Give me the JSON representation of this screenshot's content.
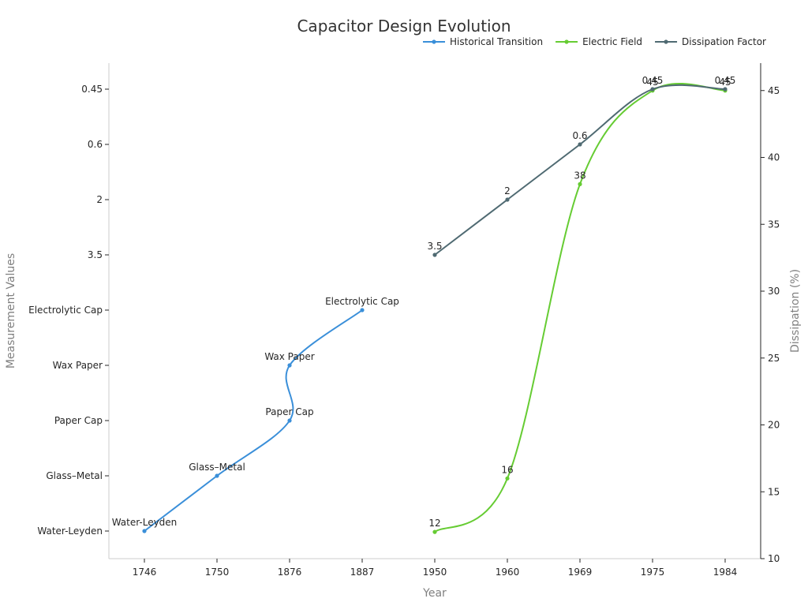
{
  "chart_data": {
    "type": "line",
    "title": "Capacitor Design Evolution",
    "xlabel": "Year",
    "ylabel_left": "Measurement Values",
    "ylabel_right": "Dissipation (%)",
    "x_categories": [
      "1746",
      "1750",
      "1876",
      "1887",
      "1950",
      "1960",
      "1969",
      "1975",
      "1984"
    ],
    "left_y_categories": [
      "Water-Leyden",
      "Glass–Metal",
      "Paper Cap",
      "Wax Paper",
      "Electrolytic Cap",
      "3.5",
      "2",
      "0.6",
      "0.45"
    ],
    "right_ylim": [
      10,
      47
    ],
    "right_y_ticks": [
      "10",
      "15",
      "20",
      "25",
      "30",
      "35",
      "40",
      "45"
    ],
    "legend_position": "top-right",
    "colors": {
      "blue": "#3a8fd9",
      "green": "#66cc33",
      "slate": "#4f6a72"
    },
    "series": [
      {
        "name": "Historical Transition",
        "axis": "left",
        "color": "#3a8fd9",
        "points": [
          {
            "x": "1746",
            "y": "Water-Leyden",
            "label": "Water-Leyden"
          },
          {
            "x": "1750",
            "y": "Glass–Metal",
            "label": "Glass–Metal"
          },
          {
            "x": "1876",
            "y": "Paper Cap",
            "label": "Paper Cap"
          },
          {
            "x": "1876",
            "y": "Wax Paper",
            "label": "Wax Paper"
          },
          {
            "x": "1887",
            "y": "Electrolytic Cap",
            "label": "Electrolytic Cap"
          }
        ]
      },
      {
        "name": "Electric Field",
        "axis": "right",
        "color": "#66cc33",
        "points": [
          {
            "x": "1950",
            "y": 12,
            "label": "12"
          },
          {
            "x": "1960",
            "y": 16,
            "label": "16"
          },
          {
            "x": "1969",
            "y": 38,
            "label": "38"
          },
          {
            "x": "1975",
            "y": 45,
            "label": "45"
          },
          {
            "x": "1984",
            "y": 45,
            "label": "45"
          }
        ]
      },
      {
        "name": "Dissipation Factor",
        "axis": "left",
        "color": "#4f6a72",
        "points": [
          {
            "x": "1950",
            "y": "3.5",
            "label": "3.5"
          },
          {
            "x": "1960",
            "y": "2",
            "label": "2"
          },
          {
            "x": "1969",
            "y": "0.6",
            "label": "0.6"
          },
          {
            "x": "1975",
            "y": "0.45",
            "label": "0.45"
          },
          {
            "x": "1984",
            "y": "0.45",
            "label": "0.45"
          }
        ]
      }
    ]
  }
}
